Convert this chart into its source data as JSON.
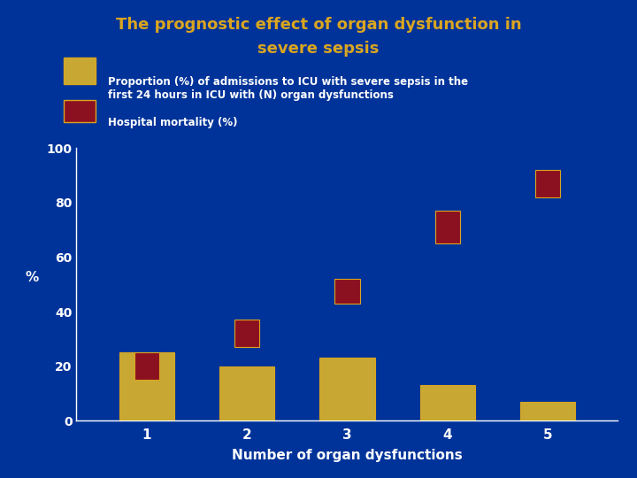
{
  "title_line1": "The prognostic effect of organ dysfunction in",
  "title_line2": "severe sepsis",
  "title_color": "#DAA520",
  "bg_color": "#003399",
  "xlabel": "Number of organ dysfunctions",
  "ylabel": "%",
  "categories": [
    1,
    2,
    3,
    4,
    5
  ],
  "proportion_values": [
    25,
    20,
    23,
    13,
    7
  ],
  "mortality_bottom": [
    15,
    27,
    43,
    65,
    82
  ],
  "mortality_top": [
    25,
    37,
    52,
    77,
    92
  ],
  "gold_color": "#C8A832",
  "red_color": "#8B1020",
  "gold_outline": "#DAA520",
  "red_outline": "#DAA520",
  "gold_bar_width": 0.55,
  "red_bar_width": 0.25,
  "ylim": [
    0,
    100
  ],
  "legend_label1": "Proportion (%) of admissions to ICU with severe sepsis in the\nfirst 24 hours in ICU with (N) organ dysfunctions",
  "legend_label2": "Hospital mortality (%)",
  "text_color": "#FFFFFF",
  "axis_color": "#FFFFFF"
}
